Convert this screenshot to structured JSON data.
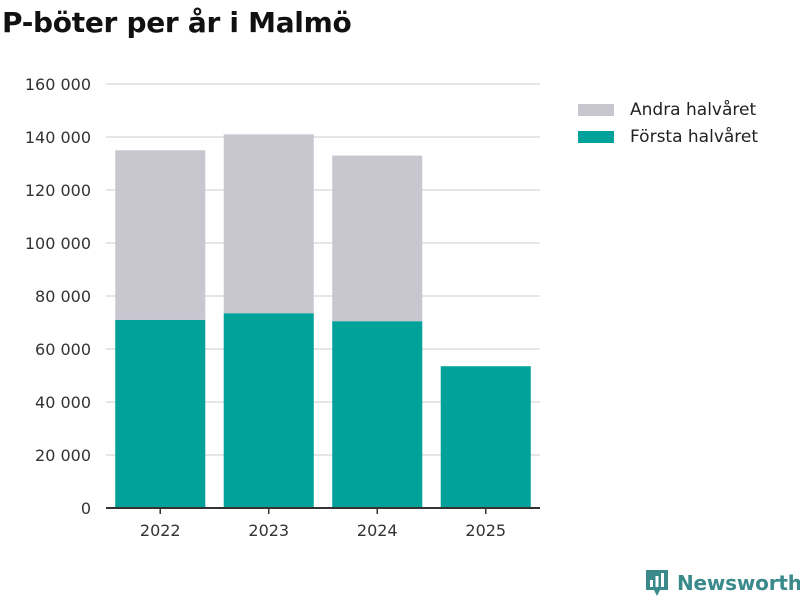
{
  "page": {
    "title": "P-böter per år i Malmö",
    "brand": "Newsworthy"
  },
  "colors": {
    "first_half": "#00a29a",
    "second_half": "#c8c7cf",
    "grid": "#dedede",
    "axis": "#333333",
    "brand": "#3a8a8c"
  },
  "chart_data": {
    "type": "bar",
    "stacked": true,
    "title": "P-böter per år i Malmö",
    "xlabel": "",
    "ylabel": "",
    "categories": [
      "2022",
      "2023",
      "2024",
      "2025"
    ],
    "series": [
      {
        "name": "Första halvåret",
        "values": [
          71000,
          73500,
          70500,
          53500
        ]
      },
      {
        "name": "Andra halvåret",
        "values": [
          64000,
          67500,
          62500,
          0
        ]
      }
    ],
    "ylim": [
      0,
      160000
    ],
    "yticks": [
      0,
      20000,
      40000,
      60000,
      80000,
      100000,
      120000,
      140000,
      160000
    ],
    "ytick_labels": [
      "0",
      "20 000",
      "40 000",
      "60 000",
      "80 000",
      "100 000",
      "120 000",
      "140 000",
      "160 000"
    ],
    "grid": true,
    "legend_position": "right",
    "legend": [
      "Andra halvåret",
      "Första halvåret"
    ]
  }
}
